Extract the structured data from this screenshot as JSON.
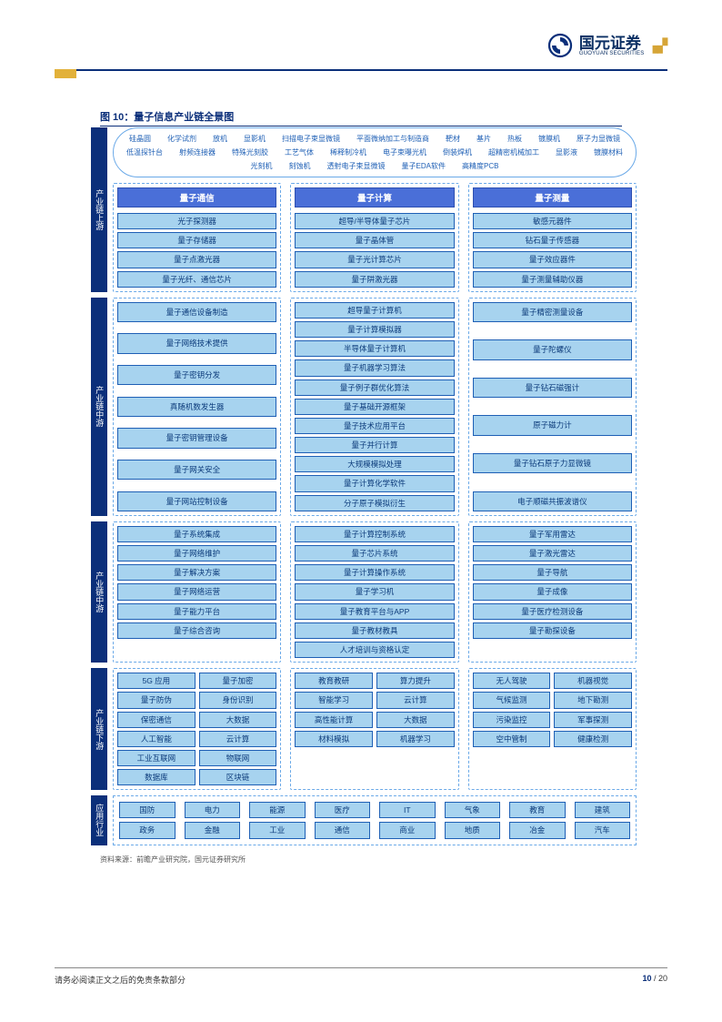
{
  "logo": {
    "cn": "国元证券",
    "en": "GUOYUAN SECURITIES"
  },
  "figure_title": "图 10：量子信息产业链全景图",
  "source": "资料来源：前瞻产业研究院，国元证券研究所",
  "footer": {
    "disclaimer": "请务必阅读正文之后的免责条款部分",
    "page_cur": "10",
    "page_total": "20"
  },
  "side_labels": {
    "upstream": "产业链上游",
    "midstream": "产业链中游",
    "midstream2": "产业链中游",
    "downstream": "产业链下游",
    "apps": "应用行业"
  },
  "col_heads": {
    "c1": "量子通信",
    "c2": "量子计算",
    "c3": "量子测量"
  },
  "bubble": [
    "硅晶圆",
    "化学试剂",
    "放机",
    "显影机",
    "扫描电子束显微镜",
    "平面微纳加工与制造商",
    "靶材",
    "基片",
    "热板",
    "镀膜机",
    "原子力显微镜",
    "低温探针台",
    "射频连接器",
    "特殊光刻胶",
    "工艺气体",
    "稀释制冷机",
    "电子束曝光机",
    "倒装焊机",
    "超精密机械加工",
    "显影液",
    "镀膜材料",
    "光刻机",
    "刻蚀机",
    "透射电子束显微镜",
    "量子EDA软件",
    "高精度PCB"
  ],
  "upstream": {
    "c1": [
      "光子探测器",
      "量子存储器",
      "量子点激光器",
      "量子光纤、通信芯片"
    ],
    "c2": [
      "超导/半导体量子芯片",
      "量子晶体管",
      "量子光计算芯片",
      "量子阱激光器"
    ],
    "c3": [
      "敏感元器件",
      "钻石量子传感器",
      "量子效应器件",
      "量子测量辅助仪器"
    ]
  },
  "mid1": {
    "c1": [
      "量子通信设备制造",
      "量子网络技术提供",
      "量子密钥分发",
      "真随机数发生器",
      "量子密钥管理设备",
      "量子网关安全",
      "量子网站控制设备"
    ],
    "c2": [
      "超导量子计算机",
      "量子计算模拟器",
      "半导体量子计算机",
      "量子机器学习算法",
      "量子例子群优化算法",
      "量子基础开源框架",
      "量子技术应用平台",
      "量子并行计算",
      "大规模模拟处理",
      "量子计算化学软件",
      "分子原子模拟衍生"
    ],
    "c3": [
      "量子精密测量设备",
      "量子陀螺仪",
      "量子钻石磁强计",
      "原子磁力计",
      "量子钻石原子力显微镜",
      "电子顺磁共振波谱仪"
    ]
  },
  "mid2": {
    "c1": [
      "量子系统集成",
      "量子网络维护",
      "量子解决方案",
      "量子网络运营",
      "量子能力平台",
      "量子综合咨询"
    ],
    "c2": [
      "量子计算控制系统",
      "量子芯片系统",
      "量子计算操作系统",
      "量子学习机",
      "量子教育平台与APP",
      "量子教材教具",
      "人才培训与资格认定"
    ],
    "c3": [
      "量子军用雷达",
      "量子激光雷达",
      "量子导航",
      "量子成像",
      "量子医疗检测设备",
      "量子勘探设备"
    ]
  },
  "downstream": {
    "c1": [
      [
        "5G 应用",
        "量子加密"
      ],
      [
        "量子防伪",
        "身份识别"
      ],
      [
        "保密通信",
        "大数据"
      ],
      [
        "人工智能",
        "云计算"
      ],
      [
        "工业互联网",
        "物联网"
      ],
      [
        "数据库",
        "区块链"
      ]
    ],
    "c2": [
      [
        "教育教研",
        "算力提升"
      ],
      [
        "智能学习",
        "云计算"
      ],
      [
        "高性能计算",
        "大数据"
      ],
      [
        "材料模拟",
        "机器学习"
      ]
    ],
    "c3": [
      [
        "无人驾驶",
        "机器视觉"
      ],
      [
        "气候监测",
        "地下勘测"
      ],
      [
        "污染监控",
        "军事探测"
      ],
      [
        "空中管制",
        "健康检测"
      ]
    ]
  },
  "apps": {
    "row1": [
      "国防",
      "电力",
      "能源",
      "医疗",
      "IT",
      "气象",
      "教育",
      "建筑"
    ],
    "row2": [
      "政务",
      "金融",
      "工业",
      "通信",
      "商业",
      "地质",
      "冶金",
      "汽车"
    ]
  },
  "colors": {
    "header_rule": "#0b2f7a",
    "side_bg": "#0b2f7a",
    "box_bg": "#a7d3ef",
    "box_border": "#1e5fb5",
    "head_bg": "#4a6fd8",
    "dash_border": "#6aa9e8"
  }
}
